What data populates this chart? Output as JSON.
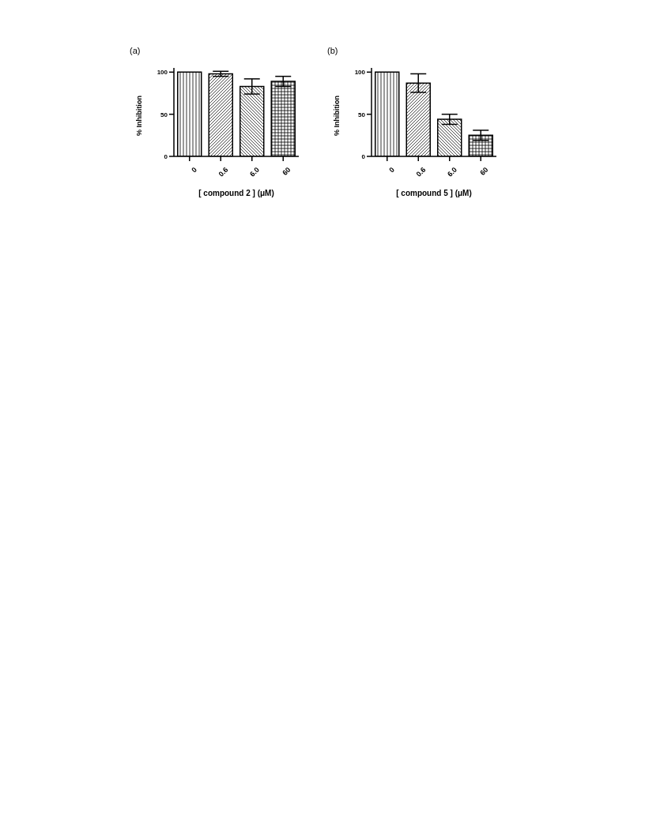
{
  "chart_data": [
    {
      "type": "bar",
      "title": "(a)",
      "xlabel": "[ compound 2 ] (μM)",
      "ylabel": "% Inhibition",
      "categories": [
        "0",
        "0.6",
        "6.0",
        "60"
      ],
      "values": [
        100,
        98,
        83,
        89
      ],
      "errors": [
        null,
        3,
        9,
        6
      ],
      "colors": [
        "#000000",
        "#000000",
        "#000000",
        "#000000"
      ],
      "ylim": [
        0,
        105
      ],
      "yticks": [
        0,
        50,
        100
      ],
      "grid": false,
      "legend": false
    },
    {
      "type": "bar",
      "title": "(b)",
      "xlabel": "[ compound 5 ] (μM)",
      "ylabel": "% Inhibition",
      "categories": [
        "0",
        "0.6",
        "6.0",
        "60"
      ],
      "values": [
        100,
        87,
        44,
        25
      ],
      "errors": [
        null,
        11,
        6,
        6
      ],
      "colors": [
        "#000000",
        "#000000",
        "#000000",
        "#000000"
      ],
      "ylim": [
        0,
        105
      ],
      "yticks": [
        0,
        50,
        100
      ],
      "grid": false,
      "legend": false
    }
  ]
}
